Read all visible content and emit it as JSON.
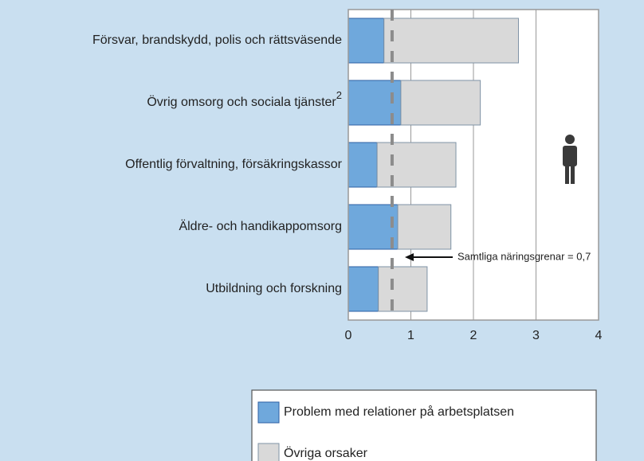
{
  "chart_data": {
    "type": "stacked_barh",
    "categories": [
      "Försvar, brandskydd, polis och rättsväsende",
      "Övrig omsorg och sociala tjänster",
      "Offentlig förvaltning, försäkringskassor",
      "Äldre- och handikappomsorg",
      "Utbildning och forskning"
    ],
    "category_notes": [
      null,
      "2",
      null,
      null,
      null
    ],
    "series": [
      {
        "name": "Problem med relationer på arbetsplatsen",
        "color": "#6fa8dc",
        "values": [
          0.57,
          0.84,
          0.46,
          0.79,
          0.48
        ]
      },
      {
        "name": "Övriga orsaker",
        "color": "#d9d9d9",
        "values": [
          2.15,
          1.27,
          1.26,
          0.85,
          0.78
        ]
      }
    ],
    "xlim": [
      0,
      4
    ],
    "xticks": [
      0,
      1,
      2,
      3,
      4
    ],
    "grid": true,
    "reference_line": {
      "value": 0.7,
      "label": "Samtliga näringsgrenar = 0,7"
    }
  }
}
